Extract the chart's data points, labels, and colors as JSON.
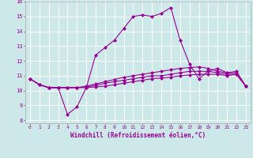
{
  "xlabel": "Windchill (Refroidissement éolien,°C)",
  "bg_color": "#cce8e8",
  "grid_color": "#ffffff",
  "line_color": "#990099",
  "x_ticks": [
    0,
    1,
    2,
    3,
    4,
    5,
    6,
    7,
    8,
    9,
    10,
    11,
    12,
    13,
    14,
    15,
    16,
    17,
    18,
    19,
    20,
    21,
    22,
    23
  ],
  "ylim": [
    7.8,
    16.0
  ],
  "xlim": [
    -0.5,
    23.5
  ],
  "y_ticks": [
    8,
    9,
    10,
    11,
    12,
    13,
    14,
    15,
    16
  ],
  "series": [
    [
      10.8,
      10.4,
      10.2,
      10.2,
      8.4,
      8.9,
      10.2,
      12.4,
      12.9,
      13.4,
      14.2,
      15.0,
      15.1,
      15.0,
      15.2,
      15.6,
      13.4,
      11.8,
      10.8,
      11.3,
      11.5,
      11.2,
      11.3,
      10.3
    ],
    [
      10.8,
      10.4,
      10.2,
      10.2,
      10.2,
      10.2,
      10.2,
      10.25,
      10.3,
      10.4,
      10.5,
      10.6,
      10.7,
      10.8,
      10.85,
      10.9,
      11.0,
      11.05,
      11.1,
      11.1,
      11.1,
      11.0,
      11.1,
      10.3
    ],
    [
      10.8,
      10.4,
      10.2,
      10.2,
      10.2,
      10.2,
      10.25,
      10.35,
      10.5,
      10.6,
      10.7,
      10.8,
      10.9,
      11.0,
      11.0,
      11.1,
      11.2,
      11.3,
      11.3,
      11.3,
      11.2,
      11.1,
      11.1,
      10.3
    ],
    [
      10.8,
      10.4,
      10.2,
      10.2,
      10.2,
      10.2,
      10.3,
      10.45,
      10.6,
      10.75,
      10.9,
      11.0,
      11.1,
      11.2,
      11.3,
      11.4,
      11.5,
      11.55,
      11.6,
      11.5,
      11.3,
      11.2,
      11.2,
      10.3
    ]
  ]
}
